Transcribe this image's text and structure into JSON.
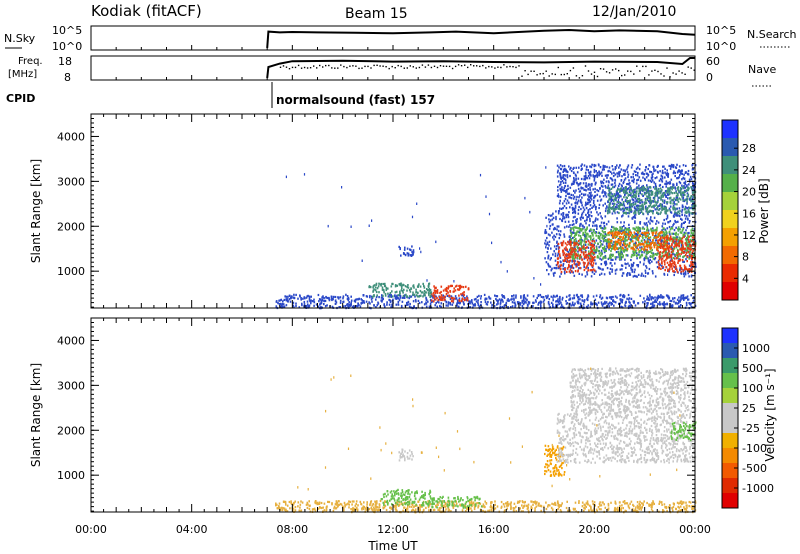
{
  "header": {
    "station": "Kodiak (fitACF)",
    "beam": "Beam 15",
    "date": "12/Jan/2010"
  },
  "summary_panels": {
    "nsky_label": "N.Sky",
    "nsky_ticks": [
      "10^5",
      "10^0"
    ],
    "nsearch_label": "N.Search",
    "nsearch_ticks": [
      "10^5",
      "10^0"
    ],
    "freq_label_line1": "Freq.",
    "freq_label_line2": "[MHz]",
    "freq_ticks": [
      "18",
      "8"
    ],
    "nave_label": "Nave",
    "nave_ticks": [
      "60",
      "0"
    ],
    "cpid_label": "CPID",
    "cpid_text": "normalsound (fast) 157",
    "nsky_series": [
      [
        7.0,
        0.0
      ],
      [
        7.05,
        0.82
      ],
      [
        7.5,
        0.78
      ],
      [
        8.0,
        0.8
      ],
      [
        9.0,
        0.78
      ],
      [
        10.5,
        0.76
      ],
      [
        12.0,
        0.74
      ],
      [
        13.5,
        0.78
      ],
      [
        14.5,
        0.82
      ],
      [
        16.0,
        0.74
      ],
      [
        18.0,
        0.86
      ],
      [
        19.0,
        0.9
      ],
      [
        20.0,
        0.84
      ],
      [
        21.0,
        0.88
      ],
      [
        22.5,
        0.84
      ],
      [
        23.5,
        0.7
      ],
      [
        24.0,
        0.66
      ]
    ],
    "freq_series": [
      [
        7.0,
        0.0
      ],
      [
        7.05,
        0.55
      ],
      [
        7.5,
        0.72
      ],
      [
        8.0,
        0.84
      ],
      [
        10.0,
        0.86
      ],
      [
        12.0,
        0.82
      ],
      [
        14.0,
        0.84
      ],
      [
        16.0,
        0.8
      ],
      [
        18.0,
        0.78
      ],
      [
        20.0,
        0.82
      ],
      [
        22.5,
        0.8
      ],
      [
        23.5,
        0.7
      ],
      [
        23.8,
        1.0
      ],
      [
        24.0,
        1.0
      ]
    ]
  },
  "chart_data": [
    {
      "type": "heatmap",
      "name": "power",
      "title": "",
      "xlabel": "",
      "ylabel": "Slant Range [km]",
      "xlim": [
        0,
        24
      ],
      "ylim": [
        180,
        4500
      ],
      "yticks": [
        "1000",
        "2000",
        "3000",
        "4000"
      ],
      "colorbar_label": "Power [dB]",
      "colorbar_ticks": [
        "4",
        "8",
        "12",
        "16",
        "20",
        "24",
        "28"
      ],
      "colorbar_colors": [
        "#1e32ff",
        "#2a5ab0",
        "#3f8f7a",
        "#55b04a",
        "#a5d23a",
        "#f0d21e",
        "#f4a000",
        "#f26a00",
        "#ea2a00",
        "#e00000"
      ],
      "regions": [
        {
          "x": [
            7.3,
            24.0
          ],
          "y": [
            200,
            500
          ],
          "color": "#2a48c8"
        },
        {
          "x": [
            13.5,
            15.0
          ],
          "y": [
            350,
            700
          ],
          "color": "#e63a14"
        },
        {
          "x": [
            11.0,
            13.5
          ],
          "y": [
            450,
            750
          ],
          "color": "#3f8f7a"
        },
        {
          "x": [
            12.2,
            12.8
          ],
          "y": [
            1350,
            1600
          ],
          "color": "#2a48c8"
        },
        {
          "x": [
            18.0,
            24.0
          ],
          "y": [
            900,
            2400
          ],
          "color": "#2a48c8"
        },
        {
          "x": [
            19.0,
            24.0
          ],
          "y": [
            1300,
            2000
          ],
          "color": "#55b04a"
        },
        {
          "x": [
            18.5,
            20.0
          ],
          "y": [
            1000,
            1700
          ],
          "color": "#e63a14"
        },
        {
          "x": [
            20.5,
            23.0
          ],
          "y": [
            1500,
            1900
          ],
          "color": "#f26a00"
        },
        {
          "x": [
            22.5,
            24.0
          ],
          "y": [
            1000,
            1800
          ],
          "color": "#e63a14"
        },
        {
          "x": [
            18.5,
            24.0
          ],
          "y": [
            2400,
            3400
          ],
          "color": "#2a48c8"
        },
        {
          "x": [
            20.5,
            24.0
          ],
          "y": [
            2300,
            2900
          ],
          "color": "#3f8f7a"
        }
      ]
    },
    {
      "type": "heatmap",
      "name": "velocity",
      "title": "",
      "xlabel": "Time UT",
      "ylabel": "Slant Range [km]",
      "xlim": [
        0,
        24
      ],
      "ylim": [
        180,
        4500
      ],
      "xticks": [
        "00:00",
        "04:00",
        "08:00",
        "12:00",
        "16:00",
        "20:00",
        "00:00"
      ],
      "yticks": [
        "1000",
        "2000",
        "3000",
        "4000"
      ],
      "colorbar_label": "Velocity [m s⁻¹]",
      "colorbar_ticks": [
        "1000",
        "500",
        "100",
        "25",
        "-25",
        "-100",
        "-500",
        "-1000"
      ],
      "colorbar_colors": [
        "#1e32ff",
        "#2a5ab0",
        "#3a9a6a",
        "#66c04a",
        "#a5d23a",
        "#c8c8c8",
        "#c8c8c8",
        "#f0b000",
        "#f48a00",
        "#f25a00",
        "#e02a00",
        "#e00000"
      ],
      "regions": [
        {
          "x": [
            7.3,
            24.0
          ],
          "y": [
            200,
            450
          ],
          "color": "#e6b040"
        },
        {
          "x": [
            11.5,
            13.5
          ],
          "y": [
            350,
            700
          ],
          "color": "#66c04a"
        },
        {
          "x": [
            13.5,
            15.5
          ],
          "y": [
            300,
            550
          ],
          "color": "#66c04a"
        },
        {
          "x": [
            12.2,
            12.8
          ],
          "y": [
            1350,
            1600
          ],
          "color": "#c8c8c8"
        },
        {
          "x": [
            18.0,
            18.8
          ],
          "y": [
            1000,
            1700
          ],
          "color": "#f4a000"
        },
        {
          "x": [
            18.5,
            24.0
          ],
          "y": [
            1300,
            2400
          ],
          "color": "#c8c8c8"
        },
        {
          "x": [
            19.0,
            24.0
          ],
          "y": [
            2400,
            3400
          ],
          "color": "#c8c8c8"
        },
        {
          "x": [
            23.0,
            24.0
          ],
          "y": [
            1800,
            2200
          ],
          "color": "#66c04a"
        }
      ]
    }
  ]
}
